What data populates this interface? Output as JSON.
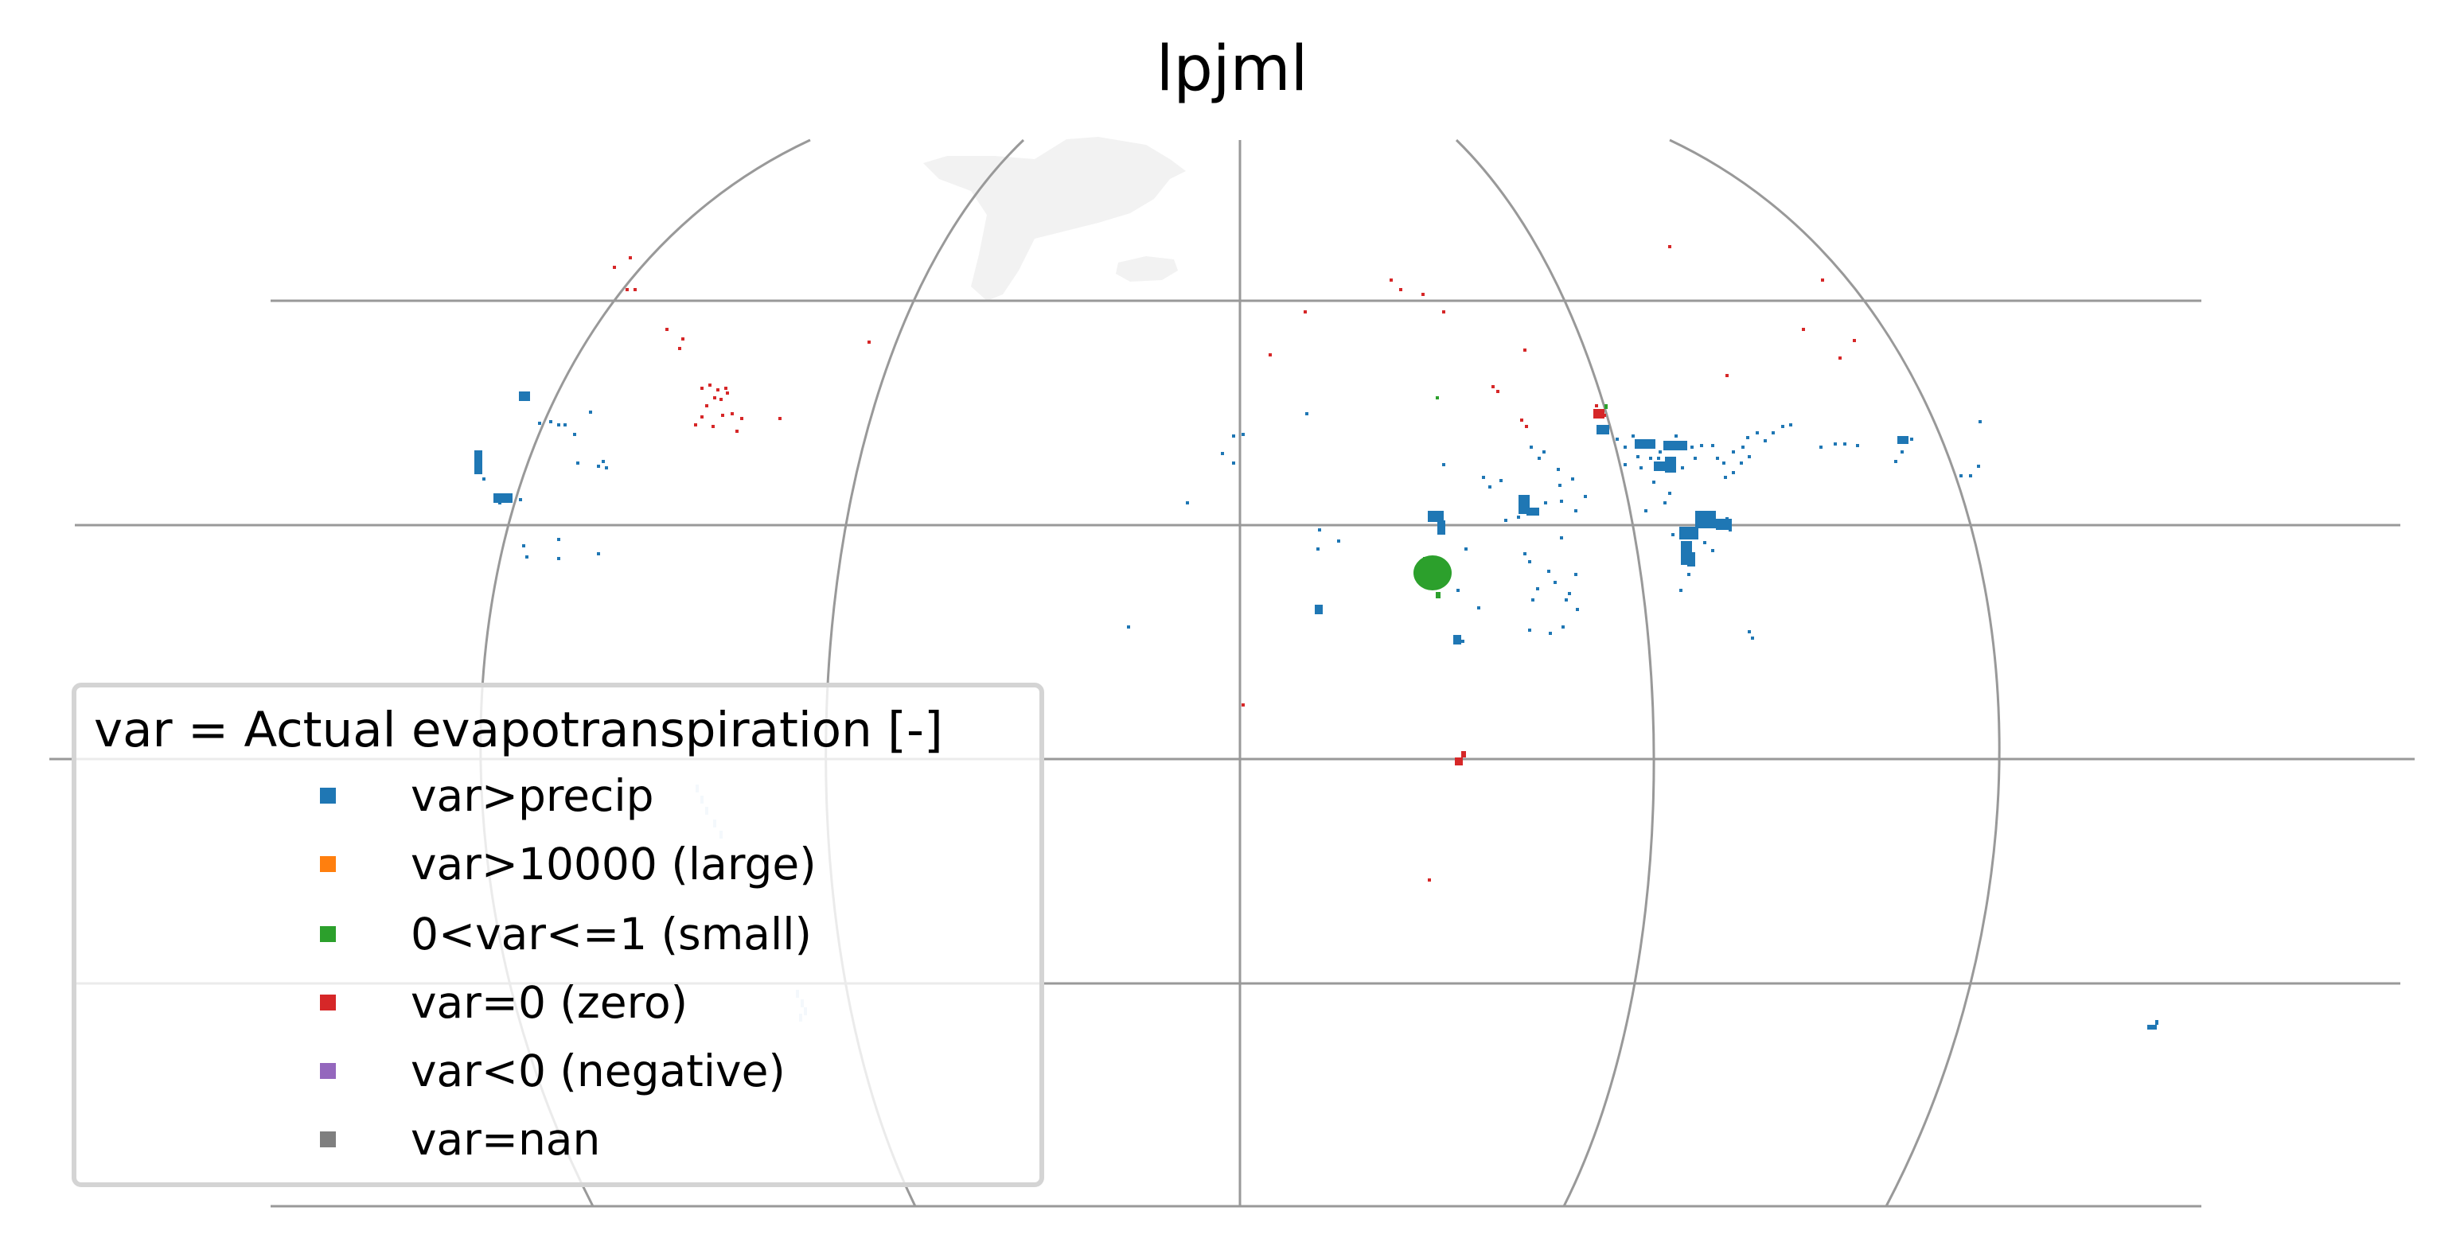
{
  "title": "lpjml",
  "legend": {
    "title": "var = Actual evapotranspiration [-]",
    "items": [
      {
        "label": "var>precip",
        "color": "#1f77b4"
      },
      {
        "label": "var>10000 (large)",
        "color": "#ff7f0e"
      },
      {
        "label": "0<var<=1 (small)",
        "color": "#2ca02c"
      },
      {
        "label": "var=0 (zero)",
        "color": "#d62728"
      },
      {
        "label": "var<0 (negative)",
        "color": "#9467bd"
      },
      {
        "label": "var=nan",
        "color": "#7f7f7f"
      }
    ]
  },
  "colors": {
    "gridline": "#999999",
    "land_background": "#f2f2f2",
    "legend_border": "#d4d4d4"
  }
}
